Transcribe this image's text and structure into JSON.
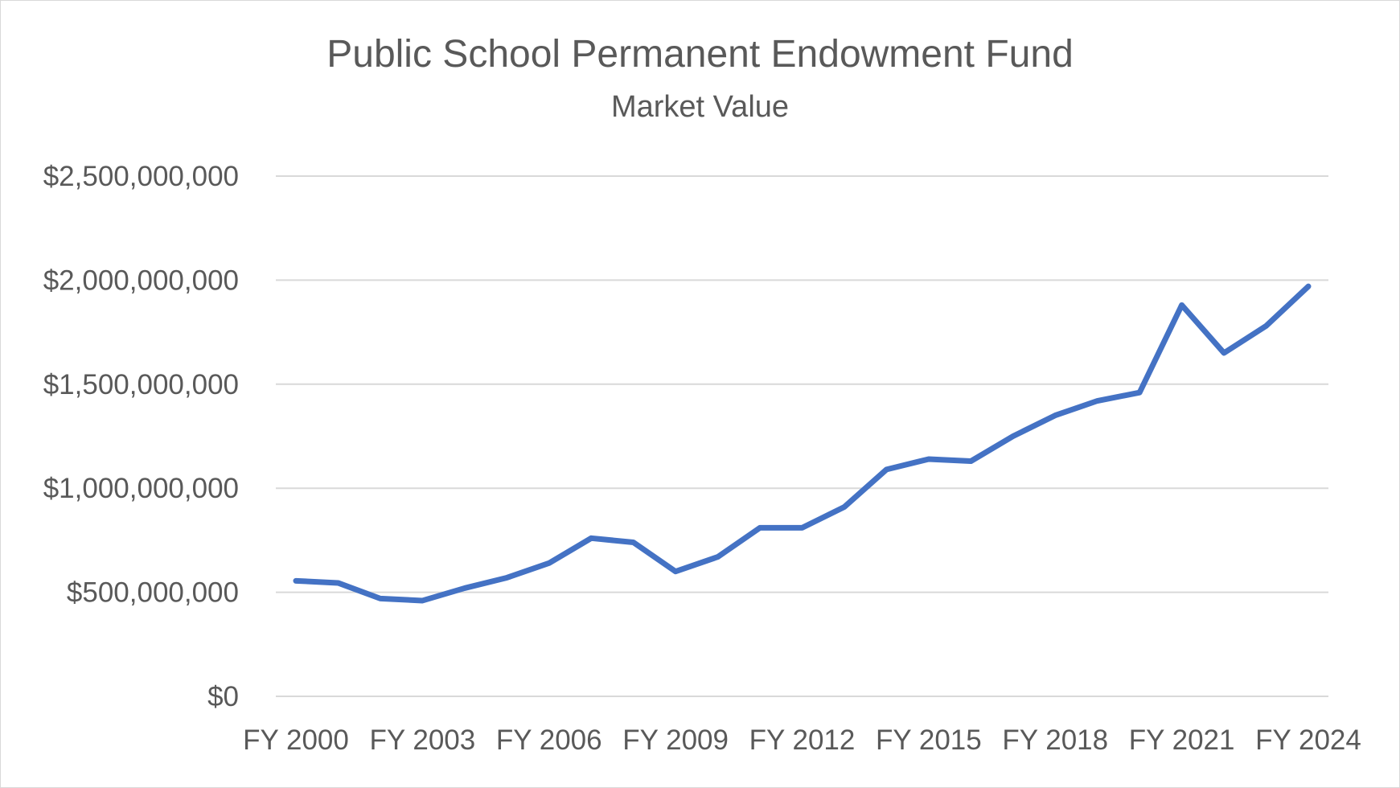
{
  "chart_data": {
    "type": "line",
    "title": "Public School Permanent Endowment Fund",
    "subtitle": "Market Value",
    "xlabel": "",
    "ylabel": "",
    "x_tick_labels": [
      "FY 2000",
      "FY 2003",
      "FY 2006",
      "FY 2009",
      "FY 2012",
      "FY 2015",
      "FY 2018",
      "FY 2021",
      "FY 2024"
    ],
    "y_tick_labels": [
      "$0",
      "$500,000,000",
      "$1,000,000,000",
      "$1,500,000,000",
      "$2,000,000,000",
      "$2,500,000,000"
    ],
    "y_ticks": [
      0,
      500000000,
      1000000000,
      1500000000,
      2000000000,
      2500000000
    ],
    "ylim": [
      0,
      2500000000
    ],
    "grid": true,
    "legend": "none",
    "line_color": "#4472C4",
    "categories": [
      "FY 2000",
      "FY 2001",
      "FY 2002",
      "FY 2003",
      "FY 2004",
      "FY 2005",
      "FY 2006",
      "FY 2007",
      "FY 2008",
      "FY 2009",
      "FY 2010",
      "FY 2011",
      "FY 2012",
      "FY 2013",
      "FY 2014",
      "FY 2015",
      "FY 2016",
      "FY 2017",
      "FY 2018",
      "FY 2019",
      "FY 2020",
      "FY 2021",
      "FY 2022",
      "FY 2023",
      "FY 2024"
    ],
    "values": [
      555000000,
      545000000,
      470000000,
      460000000,
      520000000,
      570000000,
      640000000,
      760000000,
      740000000,
      600000000,
      670000000,
      810000000,
      810000000,
      910000000,
      1090000000,
      1140000000,
      1130000000,
      1250000000,
      1350000000,
      1420000000,
      1460000000,
      1880000000,
      1650000000,
      1780000000,
      1970000000
    ]
  }
}
